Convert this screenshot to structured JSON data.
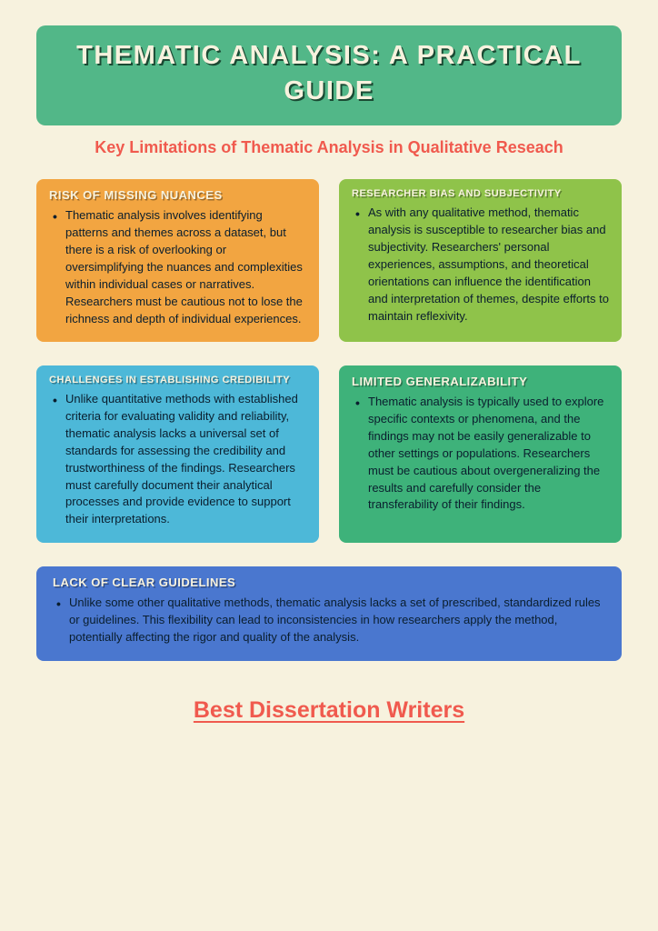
{
  "title": "THEMATIC ANALYSIS: A PRACTICAL GUIDE",
  "subtitle": "Key Limitations of Thematic Analysis in Qualitative Reseach",
  "colors": {
    "page_bg": "#f7f2de",
    "title_bg": "#52b788",
    "title_text": "#f7f2de",
    "title_shadow": "#1a4a33",
    "subtitle_text": "#f05a4e",
    "footer_text": "#f05a4e",
    "body_text": "#0a1e2e"
  },
  "cards": [
    {
      "title": "RISK OF MISSING NUANCES",
      "bg": "#f2a541",
      "text": "Thematic analysis involves identifying patterns and themes across a dataset, but there is a risk of overlooking or oversimplifying the nuances and complexities within individual cases or narratives. Researchers must be cautious not to lose the richness and depth of individual experiences."
    },
    {
      "title": "RESEARCHER BIAS AND SUBJECTIVITY",
      "bg": "#8fc34a",
      "text": "As with any qualitative method, thematic analysis is susceptible to researcher bias and subjectivity. Researchers' personal experiences, assumptions, and theoretical orientations can influence the identification and interpretation of themes, despite efforts to maintain reflexivity."
    },
    {
      "title": "CHALLENGES IN ESTABLISHING CREDIBILITY",
      "bg": "#4db8d8",
      "text": "Unlike quantitative methods with established criteria for evaluating validity and reliability, thematic analysis lacks a universal set of standards for assessing the credibility and trustworthiness of the findings. Researchers must carefully document their analytical processes and provide evidence to support their interpretations."
    },
    {
      "title": "LIMITED GENERALIZABILITY",
      "bg": "#3eb27a",
      "text": "Thematic analysis is typically used to explore specific contexts or phenomena, and the findings may not be easily generalizable to other settings or populations. Researchers must be cautious about overgeneralizing the results and carefully consider the transferability of their findings."
    }
  ],
  "full_card": {
    "title": "LACK OF CLEAR GUIDELINES",
    "bg": "#4a77cf",
    "text": "Unlike some other qualitative methods, thematic analysis lacks a set of prescribed, standardized rules or guidelines. This flexibility can lead to inconsistencies in how researchers apply the method, potentially affecting the rigor and quality of the analysis."
  },
  "footer": {
    "label": "Best Dissertation Writers"
  }
}
